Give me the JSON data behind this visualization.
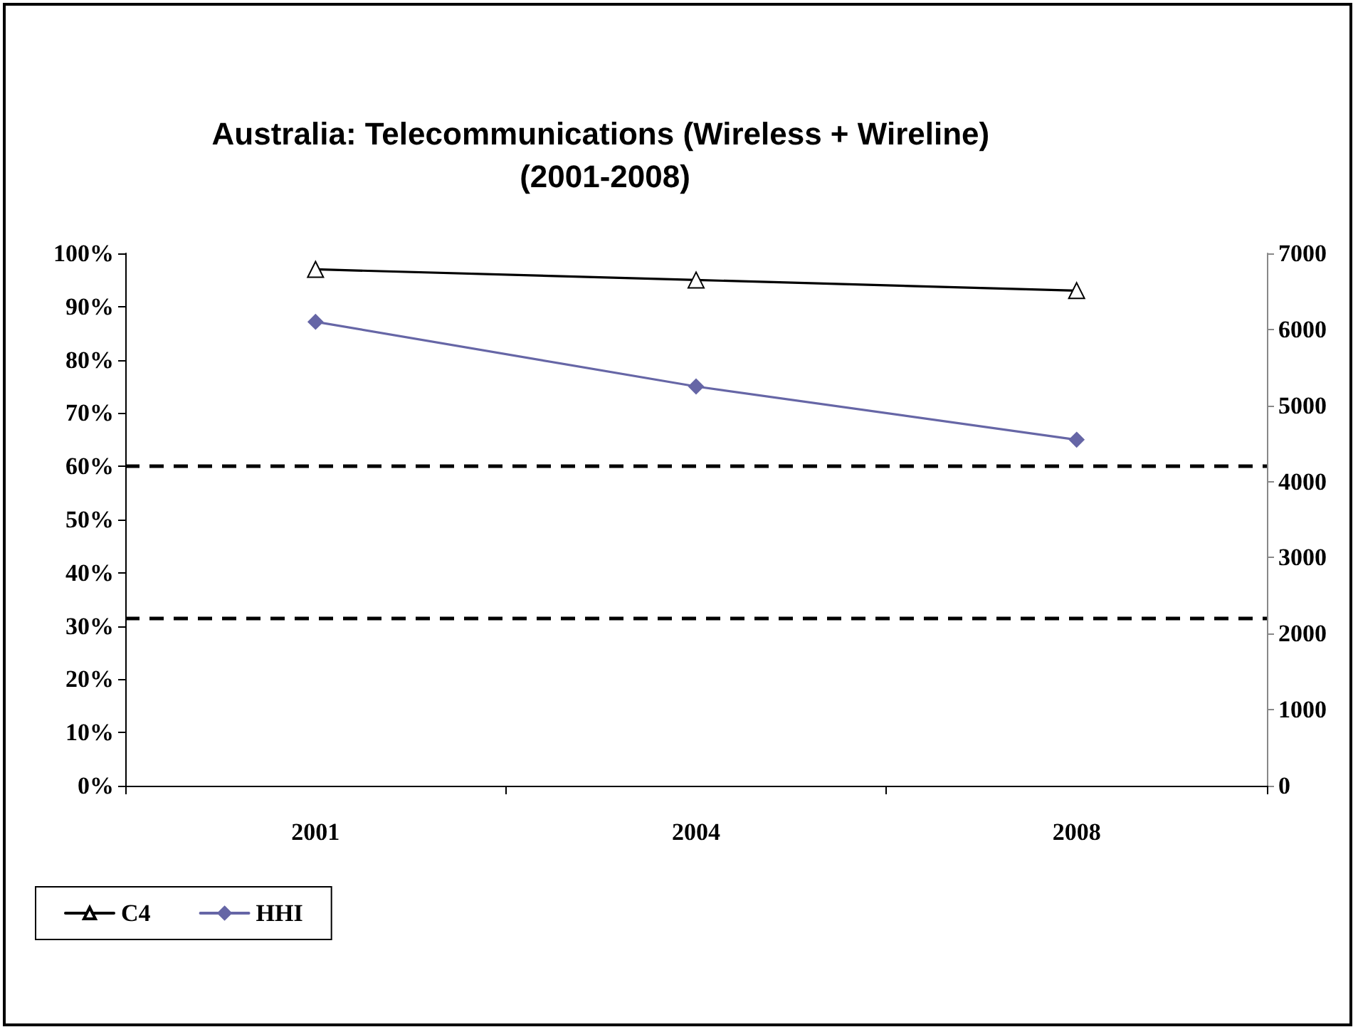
{
  "chart_data": {
    "type": "line",
    "title": "Australia: Telecommunications (Wireless + Wireline) (2001-2008)",
    "categories": [
      "2001",
      "2004",
      "2008"
    ],
    "series": [
      {
        "name": "C4",
        "color": "#000000",
        "values": [
          0.97,
          0.95,
          0.93
        ],
        "marker": "triangle"
      },
      {
        "name": "HHI",
        "color": "#6666a6",
        "values": [
          6100,
          5250,
          4550
        ],
        "marker": "diamond",
        "axis": "y2"
      }
    ],
    "ylim": [
      0,
      1
    ],
    "yticks": [
      {
        "value": 0,
        "label": "0%"
      },
      {
        "value": 0.1,
        "label": "10%"
      },
      {
        "value": 0.2,
        "label": "20%"
      },
      {
        "value": 0.3,
        "label": "30%"
      },
      {
        "value": 0.4,
        "label": "40%"
      },
      {
        "value": 0.5,
        "label": "50%"
      },
      {
        "value": 0.6,
        "label": "60%"
      },
      {
        "value": 0.7,
        "label": "70%"
      },
      {
        "value": 0.8,
        "label": "80%"
      },
      {
        "value": 0.9,
        "label": "90%"
      },
      {
        "value": 1,
        "label": "100%"
      }
    ],
    "y2lim": [
      0,
      7000
    ],
    "y2ticks": [
      0,
      1000,
      2000,
      3000,
      4000,
      5000,
      6000,
      7000
    ],
    "ref_lines": [
      {
        "axis": "y2",
        "value": 4200,
        "color": "#000000",
        "line_style": "dashed"
      },
      {
        "axis": "y2",
        "value": 2200,
        "color": "#000000",
        "line_style": "dashed"
      }
    ],
    "legend": "bottom left",
    "grid": false,
    "line_style": "solid"
  }
}
